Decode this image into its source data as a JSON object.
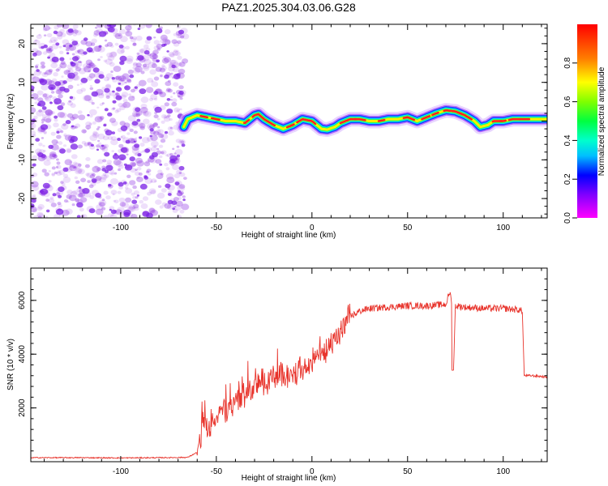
{
  "title": "PAZ1.2025.304.03.06.G28",
  "chart_data": [
    {
      "type": "heatmap",
      "panel": "spectrogram",
      "xlabel": "Height of straight line (km)",
      "ylabel": "Frequency (Hz)",
      "xlim": [
        -147,
        123
      ],
      "ylim": [
        -25,
        25
      ],
      "x_ticks": [
        -100,
        -50,
        0,
        50,
        100
      ],
      "y_ticks": [
        -20,
        -10,
        0,
        10,
        20
      ],
      "x_tick_labels": [
        "-100",
        "-50",
        "0",
        "50",
        "100"
      ],
      "y_tick_labels": [
        "-20",
        "-10",
        "0",
        "10",
        "20"
      ],
      "noise_region_x": [
        -147,
        -66
      ],
      "noise_color": "#8a2be2",
      "signal_trace": {
        "x": [
          -67,
          -65,
          -60,
          -55,
          -50,
          -45,
          -40,
          -35,
          -30,
          -28,
          -25,
          -20,
          -15,
          -10,
          -5,
          0,
          5,
          8,
          12,
          15,
          20,
          25,
          30,
          35,
          40,
          45,
          50,
          55,
          60,
          65,
          70,
          75,
          80,
          85,
          88,
          92,
          95,
          100,
          105,
          110,
          115,
          123
        ],
        "freq": [
          -1.5,
          0.5,
          1.5,
          1.0,
          0.5,
          0,
          0,
          -0.5,
          1.5,
          1.8,
          0.5,
          -1,
          -2,
          -1,
          0.5,
          0,
          -2,
          -2.2,
          -1.5,
          -0.5,
          0.5,
          0.5,
          0,
          0,
          0.5,
          0.5,
          1,
          0,
          1,
          2,
          2.8,
          2.5,
          1.5,
          0,
          -1.5,
          -1,
          0,
          0,
          0.5,
          0.5,
          0.5,
          0.5
        ]
      },
      "colorbar": {
        "label": "Normalized spectral amplitude",
        "range": [
          0,
          1
        ],
        "ticks": [
          0.0,
          0.2,
          0.4,
          0.6,
          0.8
        ],
        "tick_labels": [
          "0.0",
          "0.2",
          "0.4",
          "0.6",
          "0.8"
        ]
      }
    },
    {
      "type": "line",
      "panel": "snr",
      "xlabel": "Height of straight line (km)",
      "ylabel": "SNR (10 * v/v)",
      "xlim": [
        -147,
        123
      ],
      "ylim": [
        0,
        7200
      ],
      "x_ticks": [
        -100,
        -50,
        0,
        50,
        100
      ],
      "y_ticks": [
        2000,
        4000,
        6000
      ],
      "x_tick_labels": [
        "-100",
        "-50",
        "0",
        "50",
        "100"
      ],
      "y_tick_labels": [
        "2000",
        "4000",
        "6000"
      ],
      "color": "#e8342c",
      "series": [
        {
          "name": "SNR",
          "x": [
            -147,
            -120,
            -100,
            -80,
            -65,
            -60,
            -58,
            -57,
            -55,
            -52,
            -50,
            -45,
            -40,
            -35,
            -30,
            -25,
            -20,
            -15,
            -10,
            -5,
            0,
            5,
            10,
            15,
            18,
            20,
            25,
            30,
            40,
            50,
            60,
            70,
            72,
            73,
            74,
            75,
            80,
            90,
            100,
            108,
            110,
            111,
            115,
            123
          ],
          "y": [
            150,
            150,
            140,
            150,
            160,
            350,
            900,
            1500,
            1100,
            1400,
            1700,
            1900,
            2200,
            2500,
            2800,
            3000,
            3100,
            3200,
            3300,
            3500,
            3700,
            4000,
            4300,
            4800,
            5200,
            5400,
            5600,
            5700,
            5750,
            5800,
            5800,
            5850,
            6300,
            6000,
            3400,
            5800,
            5750,
            5700,
            5700,
            5650,
            5600,
            3200,
            3200,
            3150
          ]
        }
      ]
    }
  ]
}
